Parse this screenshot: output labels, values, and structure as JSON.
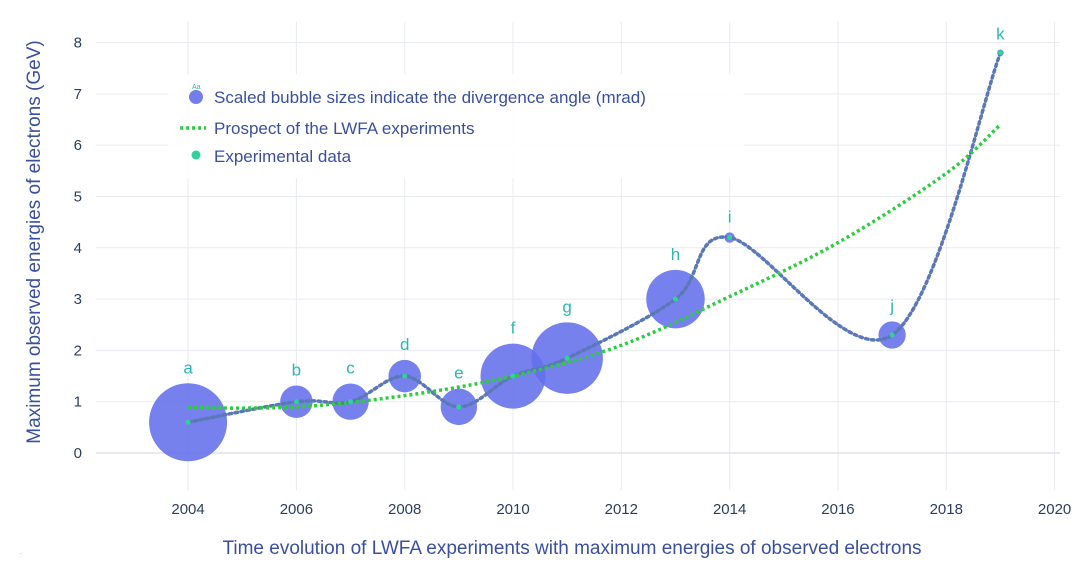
{
  "chart_data": {
    "type": "scatter",
    "title": "",
    "xlabel": "Time evolution of LWFA experiments with maximum energies of observed electrons",
    "ylabel": "Maximum observed energies of electrons (GeV)",
    "xlim": [
      2002.3,
      2020.1
    ],
    "ylim": [
      -0.72,
      8.4
    ],
    "x_ticks": [
      2004,
      2006,
      2008,
      2010,
      2012,
      2014,
      2016,
      2018,
      2020
    ],
    "y_ticks": [
      0,
      1,
      2,
      3,
      4,
      5,
      6,
      7,
      8
    ],
    "grid": true,
    "legend_position": "top-left",
    "legend": [
      {
        "name": "Scaled bubble sizes indicate the divergence angle (mrad)",
        "marker": "bubble",
        "glyph": "Aa"
      },
      {
        "name": "Prospect of the LWFA experiments",
        "marker": "dotted-line"
      },
      {
        "name": "Experimental data",
        "marker": "dot"
      }
    ],
    "series": [
      {
        "name": "Experimental data",
        "labels": [
          "a",
          "b",
          "c",
          "d",
          "e",
          "f",
          "g",
          "h",
          "i",
          "j",
          "k"
        ],
        "x": [
          2004,
          2006,
          2007,
          2008,
          2009,
          2010,
          2011,
          2013,
          2014,
          2017,
          2019
        ],
        "y": [
          0.6,
          1.0,
          1.0,
          1.5,
          0.9,
          1.5,
          1.85,
          3.0,
          4.2,
          2.3,
          7.8
        ],
        "divergence_mrad": [
          6.0,
          2.5,
          2.8,
          2.5,
          2.8,
          5.0,
          5.5,
          4.5,
          0.8,
          2.1,
          0.5
        ]
      },
      {
        "name": "Prospect of the LWFA experiments",
        "x": [
          2004,
          2006,
          2008,
          2010,
          2012,
          2014,
          2016,
          2018,
          2019
        ],
        "y": [
          0.88,
          0.9,
          1.12,
          1.5,
          2.1,
          3.05,
          4.1,
          5.45,
          6.4
        ]
      }
    ],
    "colors": {
      "bubble": "#6370ea",
      "trend_line": "#5a78b8",
      "prospect": "#2ecc40",
      "data_dot": "#2fd39a",
      "point_label": "#2cb7b2",
      "axis_text": "#3a4f9f",
      "grid": "#e8ebf1"
    }
  }
}
